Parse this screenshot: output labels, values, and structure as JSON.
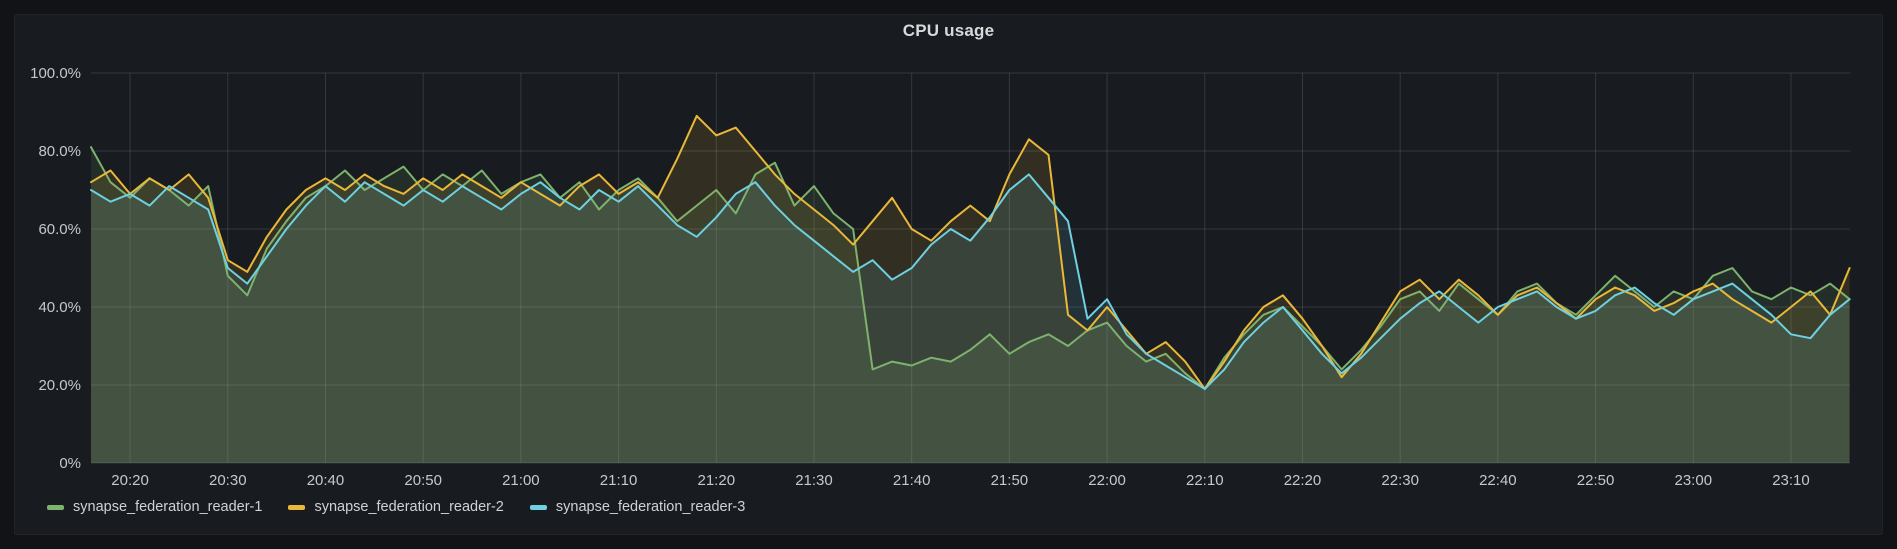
{
  "panel": {
    "title": "CPU usage"
  },
  "colors": {
    "page_bg": "#111317",
    "panel_bg": "#181b1f",
    "grid": "rgba(204,210,222,0.16)",
    "tick_text": "#c7c8cc",
    "title_text": "#d8d9da",
    "series_green": "#7EB26D",
    "series_yellow": "#EAB839",
    "series_cyan": "#6ED0E0"
  },
  "chart_data": {
    "type": "line",
    "title": "CPU usage",
    "unit": "percent",
    "ylim": [
      0,
      100
    ],
    "grid": true,
    "legend_position": "bottom-left",
    "fill_opacity": 0.13,
    "x_start_time": "20:16",
    "x_step_minutes": 2,
    "y_ticks": [
      0,
      20,
      40,
      60,
      80,
      100
    ],
    "y_tick_labels": [
      "0%",
      "20.0%",
      "40.0%",
      "60.0%",
      "80.0%",
      "100.0%"
    ],
    "x_tick_labels": [
      "20:20",
      "20:30",
      "20:40",
      "20:50",
      "21:00",
      "21:10",
      "21:20",
      "21:30",
      "21:40",
      "21:50",
      "22:00",
      "22:10",
      "22:20",
      "22:30",
      "22:40",
      "22:50",
      "23:00",
      "23:10"
    ],
    "x_tick_start_offset_minutes": 4,
    "x_tick_step_minutes": 10,
    "series": [
      {
        "name": "synapse_federation_reader-1",
        "color": "#7EB26D",
        "values": [
          81,
          72,
          68,
          73,
          70,
          66,
          71,
          48,
          43,
          55,
          62,
          68,
          71,
          75,
          70,
          73,
          76,
          70,
          74,
          71,
          75,
          69,
          72,
          74,
          68,
          72,
          65,
          70,
          73,
          68,
          62,
          66,
          70,
          64,
          74,
          77,
          66,
          71,
          64,
          60,
          24,
          26,
          25,
          27,
          26,
          29,
          33,
          28,
          31,
          33,
          30,
          34,
          36,
          30,
          26,
          28,
          23,
          19,
          27,
          33,
          38,
          40,
          35,
          30,
          24,
          29,
          35,
          42,
          44,
          39,
          46,
          42,
          38,
          44,
          46,
          41,
          38,
          43,
          48,
          44,
          40,
          44,
          42,
          48,
          50,
          44,
          42,
          45,
          43,
          46,
          42
        ]
      },
      {
        "name": "synapse_federation_reader-2",
        "color": "#EAB839",
        "values": [
          72,
          75,
          69,
          73,
          70,
          74,
          68,
          52,
          49,
          58,
          65,
          70,
          73,
          70,
          74,
          71,
          69,
          73,
          70,
          74,
          71,
          68,
          72,
          69,
          66,
          71,
          74,
          69,
          72,
          68,
          78,
          89,
          84,
          86,
          80,
          74,
          69,
          65,
          61,
          56,
          62,
          68,
          60,
          57,
          62,
          66,
          62,
          74,
          83,
          79,
          38,
          34,
          40,
          34,
          28,
          31,
          26,
          19,
          26,
          34,
          40,
          43,
          37,
          30,
          22,
          28,
          36,
          44,
          47,
          42,
          47,
          43,
          38,
          43,
          45,
          41,
          37,
          42,
          45,
          43,
          39,
          41,
          44,
          46,
          42,
          39,
          36,
          40,
          44,
          38,
          50
        ]
      },
      {
        "name": "synapse_federation_reader-3",
        "color": "#6ED0E0",
        "values": [
          70,
          67,
          69,
          66,
          71,
          68,
          65,
          50,
          46,
          53,
          60,
          66,
          71,
          67,
          72,
          69,
          66,
          70,
          67,
          71,
          68,
          65,
          69,
          72,
          68,
          65,
          70,
          67,
          71,
          66,
          61,
          58,
          63,
          69,
          72,
          66,
          61,
          57,
          53,
          49,
          52,
          47,
          50,
          56,
          60,
          57,
          63,
          70,
          74,
          68,
          62,
          37,
          42,
          33,
          28,
          25,
          22,
          19,
          24,
          31,
          36,
          40,
          34,
          28,
          23,
          27,
          32,
          37,
          41,
          44,
          40,
          36,
          40,
          42,
          44,
          40,
          37,
          39,
          43,
          45,
          41,
          38,
          42,
          44,
          46,
          42,
          38,
          33,
          32,
          38,
          42
        ]
      }
    ]
  }
}
